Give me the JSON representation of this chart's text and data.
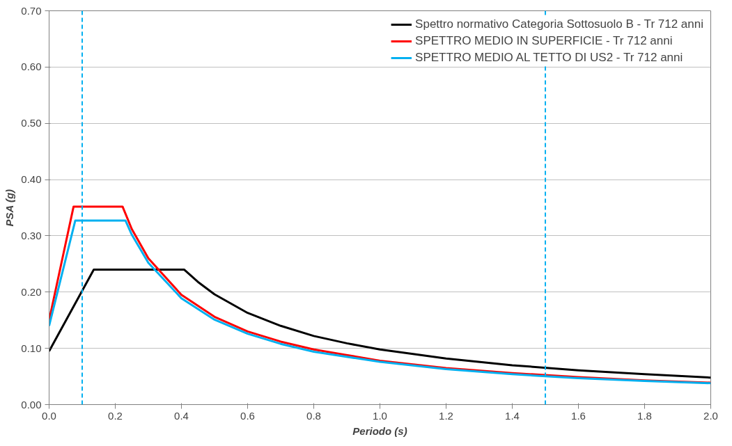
{
  "chart_data": {
    "type": "line",
    "xlabel": "Periodo (s)",
    "ylabel": "PSA (g)",
    "xlim": [
      0,
      2.0
    ],
    "ylim": [
      0,
      0.7
    ],
    "xticks": [
      {
        "value": 0,
        "label": "0.0"
      },
      {
        "value": 0.2,
        "label": "0.2"
      },
      {
        "value": 0.4,
        "label": "0.4"
      },
      {
        "value": 0.6,
        "label": "0.6"
      },
      {
        "value": 0.8,
        "label": "0.8"
      },
      {
        "value": 1.0,
        "label": "1.0"
      },
      {
        "value": 1.2,
        "label": "1.2"
      },
      {
        "value": 1.4,
        "label": "1.4"
      },
      {
        "value": 1.6,
        "label": "1.6"
      },
      {
        "value": 1.8,
        "label": "1.8"
      },
      {
        "value": 2.0,
        "label": "2.0"
      }
    ],
    "yticks": [
      {
        "value": 0,
        "label": "0.00"
      },
      {
        "value": 0.1,
        "label": "0.10"
      },
      {
        "value": 0.2,
        "label": "0.20"
      },
      {
        "value": 0.3,
        "label": "0.30"
      },
      {
        "value": 0.4,
        "label": "0.40"
      },
      {
        "value": 0.5,
        "label": "0.50"
      },
      {
        "value": 0.6,
        "label": "0.60"
      },
      {
        "value": 0.7,
        "label": "0.70"
      }
    ],
    "grid": "y",
    "legend": "top right",
    "marker": "none",
    "line_style": "solid",
    "series": [
      {
        "name": "Spettro normativo Categoria Sottosuolo B - Tr 712 anni",
        "color": "#000000",
        "x": [
          0,
          0.135,
          0.408,
          0.45,
          0.5,
          0.6,
          0.7,
          0.8,
          0.9,
          1.0,
          1.2,
          1.4,
          1.6,
          1.8,
          2.0
        ],
        "values": [
          0.095,
          0.24,
          0.24,
          0.218,
          0.196,
          0.163,
          0.14,
          0.122,
          0.109,
          0.098,
          0.082,
          0.07,
          0.061,
          0.054,
          0.048
        ]
      },
      {
        "name": "SPETTRO MEDIO IN SUPERFICIE - Tr 712 anni",
        "color": "#ff0000",
        "x": [
          0,
          0.074,
          0.222,
          0.25,
          0.3,
          0.4,
          0.5,
          0.6,
          0.7,
          0.8,
          1.0,
          1.2,
          1.4,
          1.6,
          1.8,
          2.0
        ],
        "values": [
          0.15,
          0.352,
          0.352,
          0.312,
          0.26,
          0.195,
          0.156,
          0.13,
          0.112,
          0.098,
          0.078,
          0.065,
          0.056,
          0.049,
          0.043,
          0.039
        ]
      },
      {
        "name": "SPETTRO MEDIO AL TETTO DI US2 - Tr 712 anni",
        "color": "#00b0f0",
        "x": [
          0,
          0.079,
          0.231,
          0.25,
          0.3,
          0.4,
          0.5,
          0.6,
          0.7,
          0.8,
          1.0,
          1.2,
          1.4,
          1.6,
          1.8,
          2.0
        ],
        "values": [
          0.14,
          0.327,
          0.327,
          0.302,
          0.252,
          0.189,
          0.151,
          0.126,
          0.108,
          0.094,
          0.076,
          0.063,
          0.054,
          0.047,
          0.042,
          0.038
        ]
      }
    ],
    "ref_lines": [
      {
        "axis": "x",
        "value": 0.1,
        "color": "#00b0f0",
        "line_style": "dashed"
      },
      {
        "axis": "x",
        "value": 1.5,
        "color": "#00b0f0",
        "line_style": "dashed"
      }
    ]
  }
}
